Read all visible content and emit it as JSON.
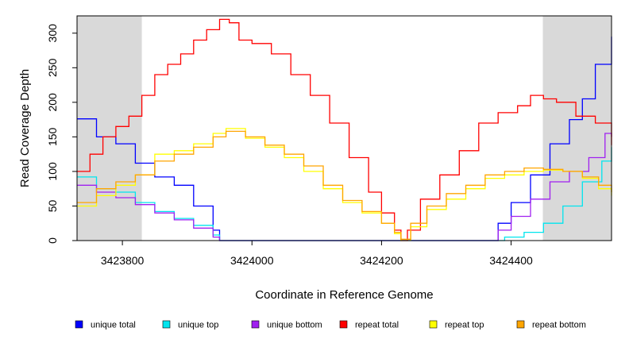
{
  "chart_data": {
    "type": "line",
    "title": "",
    "xlabel": "Coordinate in Reference Genome",
    "ylabel": "Read Coverage Depth",
    "xlim": [
      3423730,
      3424555
    ],
    "ylim": [
      0,
      325
    ],
    "xticks": [
      3423800,
      3424000,
      3424200,
      3424400
    ],
    "xtick_labels": [
      "3423800",
      "3424000",
      "3424200",
      "3424400"
    ],
    "yticks": [
      0,
      50,
      100,
      150,
      200,
      250,
      300
    ],
    "ytick_labels": [
      "0",
      "50",
      "100",
      "150",
      "200",
      "250",
      "300"
    ],
    "shaded_regions": [
      [
        3423730,
        3423830
      ],
      [
        3424449,
        3424555
      ]
    ],
    "shade_color": "#d9d9d9",
    "legend_position": "bottom",
    "series": [
      {
        "name": "unique total",
        "color": "#0000ff",
        "x": [
          3423730,
          3423760,
          3423790,
          3423820,
          3423850,
          3423880,
          3423910,
          3423940,
          3423950,
          3424000,
          3424100,
          3424200,
          3424300,
          3424365,
          3424380,
          3424400,
          3424430,
          3424460,
          3424490,
          3424510,
          3424530,
          3424555
        ],
        "y": [
          176,
          150,
          140,
          112,
          92,
          80,
          50,
          15,
          0,
          0,
          0,
          0,
          0,
          0,
          25,
          55,
          95,
          140,
          175,
          205,
          255,
          295
        ]
      },
      {
        "name": "unique top",
        "color": "#00e5ee",
        "x": [
          3423730,
          3423760,
          3423790,
          3423820,
          3423850,
          3423880,
          3423910,
          3423940,
          3423950,
          3424000,
          3424100,
          3424200,
          3424300,
          3424380,
          3424390,
          3424420,
          3424450,
          3424480,
          3424510,
          3424540,
          3424555
        ],
        "y": [
          92,
          75,
          70,
          55,
          42,
          32,
          22,
          8,
          0,
          0,
          0,
          0,
          0,
          0,
          5,
          12,
          25,
          50,
          85,
          115,
          135
        ]
      },
      {
        "name": "unique bottom",
        "color": "#a020f0",
        "x": [
          3423730,
          3423760,
          3423790,
          3423820,
          3423850,
          3423880,
          3423910,
          3423940,
          3423950,
          3424000,
          3424100,
          3424200,
          3424300,
          3424365,
          3424380,
          3424400,
          3424430,
          3424460,
          3424490,
          3424520,
          3424545,
          3424555
        ],
        "y": [
          80,
          70,
          62,
          52,
          40,
          30,
          18,
          5,
          0,
          0,
          0,
          0,
          0,
          0,
          15,
          35,
          60,
          85,
          100,
          120,
          155,
          150
        ]
      },
      {
        "name": "repeat total",
        "color": "#ff0000",
        "x": [
          3423730,
          3423750,
          3423770,
          3423790,
          3423810,
          3423830,
          3423850,
          3423870,
          3423890,
          3423910,
          3423930,
          3423950,
          3423965,
          3423980,
          3424000,
          3424030,
          3424060,
          3424090,
          3424120,
          3424150,
          3424180,
          3424200,
          3424220,
          3424230,
          3424240,
          3424260,
          3424290,
          3424320,
          3424350,
          3424380,
          3424410,
          3424430,
          3424450,
          3424470,
          3424500,
          3424530,
          3424555
        ],
        "y": [
          100,
          125,
          150,
          165,
          180,
          210,
          240,
          255,
          270,
          290,
          305,
          320,
          315,
          290,
          285,
          270,
          240,
          210,
          170,
          120,
          70,
          40,
          15,
          0,
          15,
          60,
          95,
          130,
          170,
          185,
          195,
          210,
          205,
          200,
          180,
          170,
          138
        ]
      },
      {
        "name": "repeat top",
        "color": "#ffff00",
        "x": [
          3423730,
          3423760,
          3423790,
          3423820,
          3423850,
          3423880,
          3423910,
          3423940,
          3423960,
          3423990,
          3424020,
          3424050,
          3424080,
          3424110,
          3424140,
          3424170,
          3424200,
          3424220,
          3424230,
          3424245,
          3424270,
          3424300,
          3424330,
          3424360,
          3424390,
          3424420,
          3424450,
          3424480,
          3424510,
          3424535,
          3424555
        ],
        "y": [
          50,
          65,
          80,
          95,
          125,
          130,
          140,
          155,
          162,
          148,
          135,
          120,
          100,
          75,
          55,
          40,
          25,
          10,
          0,
          20,
          45,
          60,
          75,
          90,
          95,
          100,
          102,
          100,
          90,
          75,
          65
        ]
      },
      {
        "name": "repeat bottom",
        "color": "#ffa500",
        "x": [
          3423730,
          3423760,
          3423790,
          3423820,
          3423850,
          3423880,
          3423910,
          3423940,
          3423960,
          3423990,
          3424020,
          3424050,
          3424080,
          3424110,
          3424140,
          3424170,
          3424200,
          3424220,
          3424230,
          3424245,
          3424270,
          3424300,
          3424330,
          3424360,
          3424390,
          3424420,
          3424450,
          3424480,
          3424510,
          3424535,
          3424555
        ],
        "y": [
          55,
          75,
          85,
          95,
          115,
          125,
          135,
          150,
          158,
          150,
          138,
          125,
          108,
          80,
          58,
          42,
          25,
          12,
          2,
          25,
          50,
          68,
          80,
          95,
          100,
          105,
          103,
          100,
          92,
          80,
          70
        ]
      }
    ]
  }
}
